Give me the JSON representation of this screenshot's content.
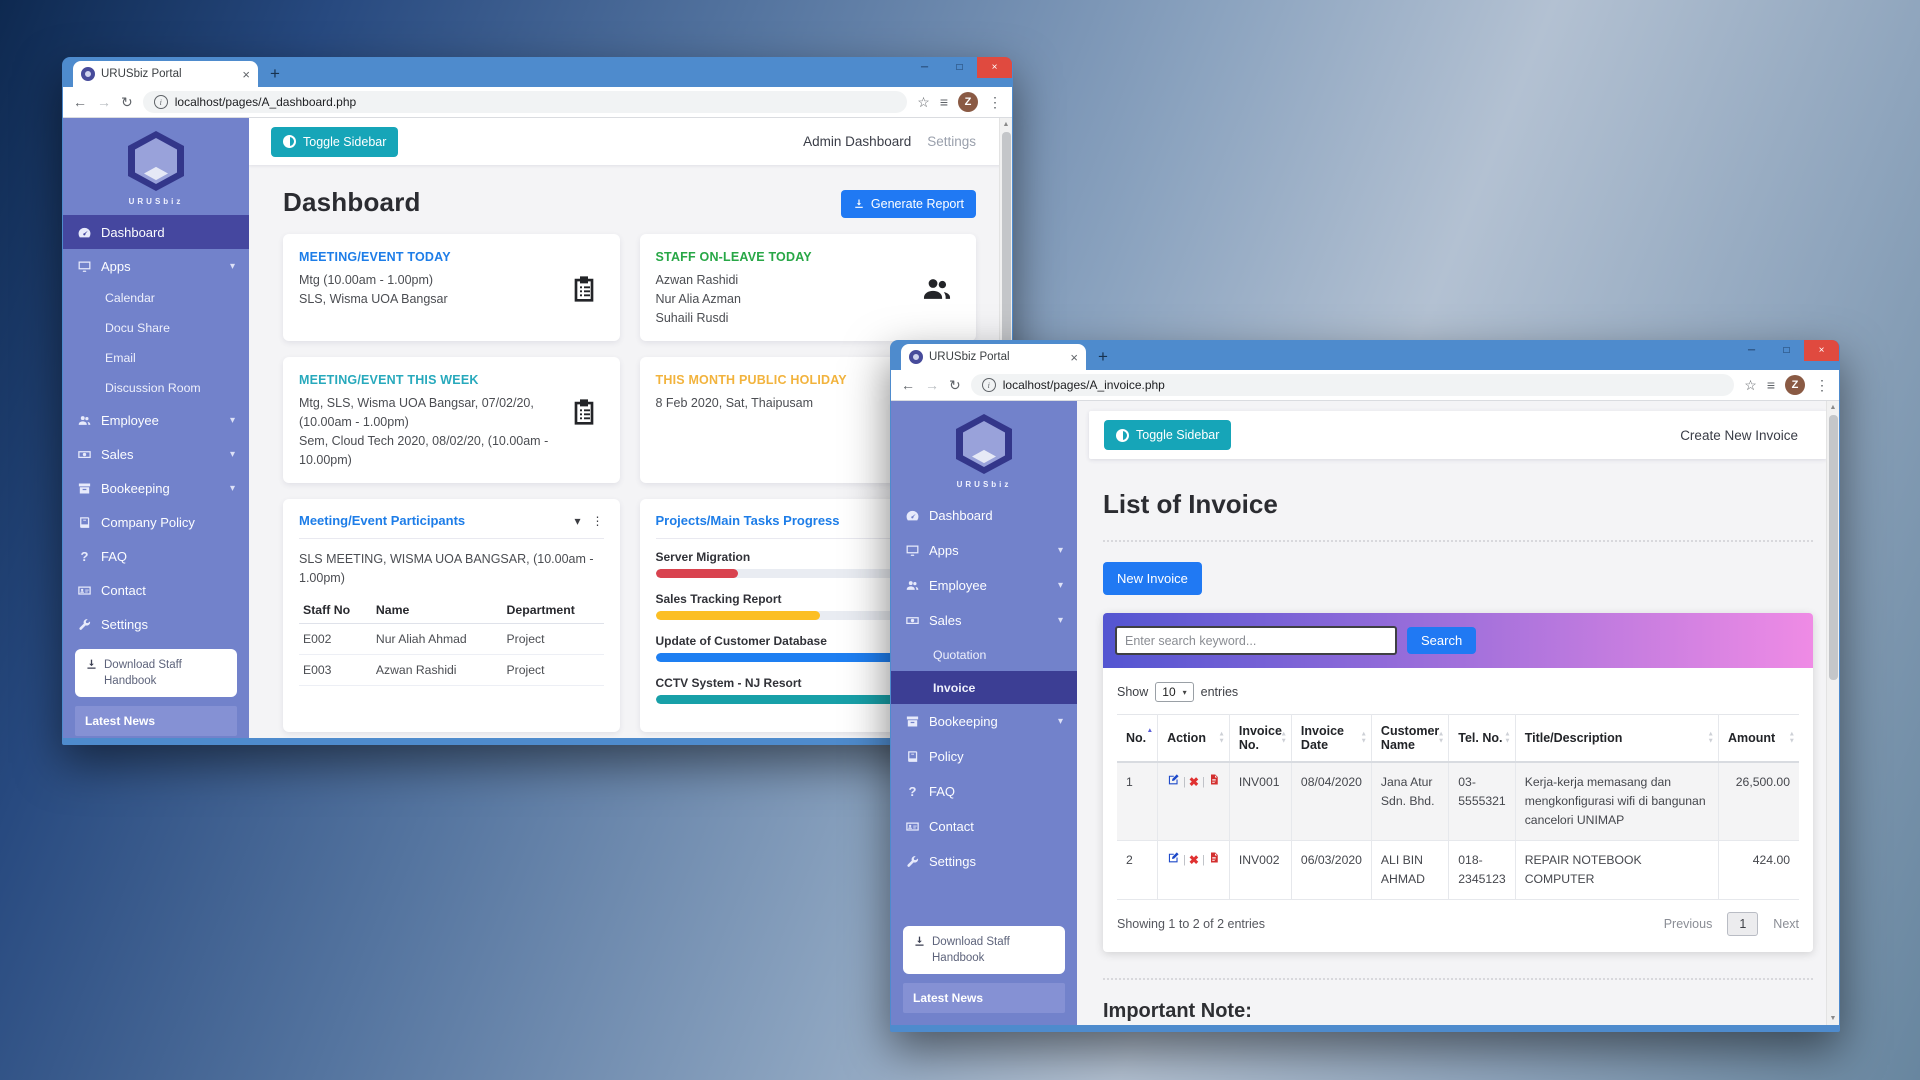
{
  "win_back": {
    "tab_title": "URUSbiz Portal",
    "url": "localhost/pages/A_dashboard.php",
    "avatar": "Z",
    "brand": "URUSbiz",
    "sidebar": {
      "items": [
        {
          "label": "Dashboard"
        },
        {
          "label": "Apps"
        },
        {
          "label": "Calendar"
        },
        {
          "label": "Docu Share"
        },
        {
          "label": "Email"
        },
        {
          "label": "Discussion Room"
        },
        {
          "label": "Employee"
        },
        {
          "label": "Sales"
        },
        {
          "label": "Bookeeping"
        },
        {
          "label": "Company Policy"
        },
        {
          "label": "FAQ"
        },
        {
          "label": "Contact"
        },
        {
          "label": "Settings"
        }
      ],
      "handbook": "Download Staff Handbook",
      "news": "Latest News"
    },
    "topbar": {
      "toggle": "Toggle Sidebar",
      "admin": "Admin Dashboard",
      "settings": "Settings"
    },
    "page_title": "Dashboard",
    "generate_report": "Generate Report",
    "cards": {
      "meeting_today": {
        "title": "MEETING/EVENT TODAY",
        "line1": "Mtg (10.00am - 1.00pm)",
        "line2": "SLS, Wisma UOA Bangsar"
      },
      "staff_leave": {
        "title": "STAFF ON-LEAVE TODAY",
        "line1": "Azwan Rashidi",
        "line2": "Nur Alia Azman",
        "line3": "Suhaili Rusdi"
      },
      "meeting_week": {
        "title": "MEETING/EVENT THIS WEEK",
        "line1": "Mtg, SLS, Wisma UOA Bangsar, 07/02/20, (10.00am - 1.00pm)",
        "line2": "Sem, Cloud Tech 2020, 08/02/20, (10.00am - 10.00pm)"
      },
      "holiday": {
        "title": "THIS MONTH PUBLIC HOLIDAY",
        "line1": "8 Feb 2020, Sat, Thaipusam"
      },
      "participants": {
        "title": "Meeting/Event Participants",
        "subtitle": "SLS MEETING, WISMA UOA BANGSAR, (10.00am - 1.00pm)",
        "col1": "Staff No",
        "col2": "Name",
        "col3": "Department",
        "rows": [
          {
            "staff_no": "E002",
            "name": "Nur Aliah Ahmad",
            "dept": "Project"
          },
          {
            "staff_no": "E003",
            "name": "Azwan Rashidi",
            "dept": "Project"
          }
        ]
      },
      "progress": {
        "title": "Projects/Main Tasks Progress",
        "items": [
          {
            "label": "Server Migration",
            "pct": 27,
            "color": "#d9434f"
          },
          {
            "label": "Sales Tracking Report",
            "pct": 54,
            "color": "#fcbf24"
          },
          {
            "label": "Update of Customer Database",
            "pct": 81,
            "color": "#1e7ff2"
          },
          {
            "label": "CCTV System - NJ Resort",
            "pct": 93,
            "color": "#18a0a8"
          }
        ]
      }
    }
  },
  "win_front": {
    "tab_title": "URUSbiz Portal",
    "url": "localhost/pages/A_invoice.php",
    "avatar": "Z",
    "brand": "URUSbiz",
    "sidebar": {
      "items": [
        {
          "label": "Dashboard"
        },
        {
          "label": "Apps"
        },
        {
          "label": "Employee"
        },
        {
          "label": "Sales"
        },
        {
          "label": "Quotation"
        },
        {
          "label": "Invoice"
        },
        {
          "label": "Bookeeping"
        },
        {
          "label": "Policy"
        },
        {
          "label": "FAQ"
        },
        {
          "label": "Contact"
        },
        {
          "label": "Settings"
        }
      ],
      "handbook": "Download Staff Handbook",
      "news": "Latest News"
    },
    "topbar": {
      "toggle": "Toggle Sidebar",
      "create": "Create New Invoice"
    },
    "page_title": "List of Invoice",
    "new_invoice": "New Invoice",
    "search": {
      "placeholder": "Enter search keyword...",
      "button": "Search"
    },
    "entries": {
      "show": "Show",
      "value": "10",
      "word": "entries"
    },
    "table": {
      "col_no": "No.",
      "col_action": "Action",
      "col_invoice_no": "Invoice No.",
      "col_invoice_date": "Invoice Date",
      "col_customer": "Customer Name",
      "col_tel": "Tel. No.",
      "col_desc": "Title/Description",
      "col_amount": "Amount",
      "rows": [
        {
          "no": "1",
          "invoice_no": "INV001",
          "date": "08/04/2020",
          "customer": "Jana Atur Sdn. Bhd.",
          "tel": "03-5555321",
          "desc": "Kerja-kerja memasang dan mengkonfigurasi wifi di bangunan cancelori UNIMAP",
          "amount": "26,500.00"
        },
        {
          "no": "2",
          "invoice_no": "INV002",
          "date": "06/03/2020",
          "customer": "ALI BIN AHMAD",
          "tel": "018-2345123",
          "desc": "REPAIR NOTEBOOK COMPUTER",
          "amount": "424.00"
        }
      ]
    },
    "pagination": {
      "showing": "Showing 1 to 2 of 2 entries",
      "previous": "Previous",
      "page": "1",
      "next": "Next"
    },
    "note_title": "Important Note:"
  }
}
